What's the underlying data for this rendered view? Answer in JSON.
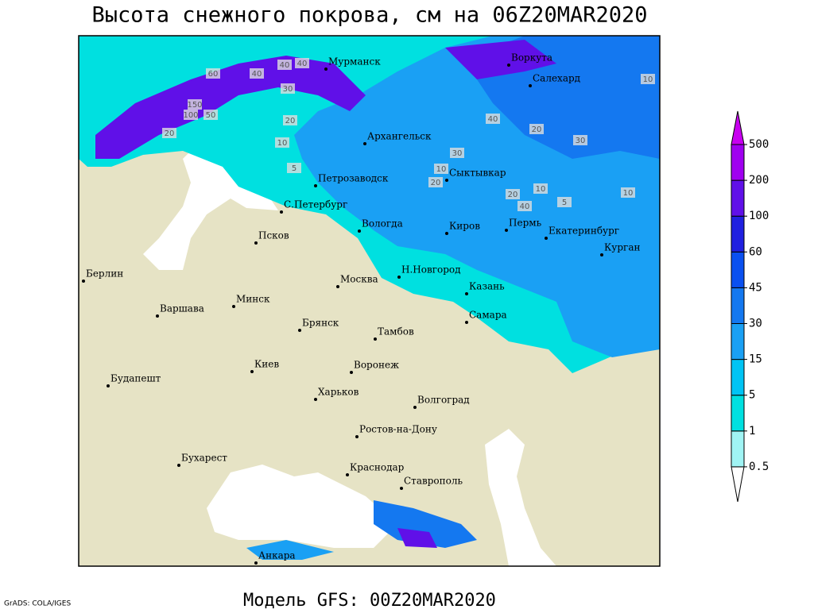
{
  "title": "Высота снежного покрова, см на 06Z20MAR2020",
  "footer": "Модель GFS: 00Z20MAR2020",
  "credit": "GrADS: COLA/IGES",
  "cities": [
    "Мурманск",
    "Воркута",
    "Салехард",
    "Архангельск",
    "Петрозаводск",
    "Сыктывкар",
    "С.Петербург",
    "Вологда",
    "Киров",
    "Пермь",
    "Екатеринбург",
    "Курган",
    "Псков",
    "Берлин",
    "Н.Новгород",
    "Москва",
    "Казань",
    "Минск",
    "Варшава",
    "Самара",
    "Брянск",
    "Тамбов",
    "Киев",
    "Воронеж",
    "Будапешт",
    "Харьков",
    "Волгоград",
    "Ростов-на-Дону",
    "Бухарест",
    "Краснодар",
    "Ставрополь",
    "Анкара"
  ],
  "contour_labels": [
    40,
    40,
    60,
    100,
    50,
    150,
    20,
    30,
    10,
    40,
    20,
    30,
    10,
    5,
    20,
    20,
    10,
    5,
    40,
    30,
    20,
    10,
    40,
    10
  ],
  "legend": {
    "levels": [
      0.5,
      1,
      5,
      15,
      30,
      45,
      60,
      100,
      200,
      500
    ],
    "colors": [
      "#ffffff",
      "#a0f4f4",
      "#00e0e0",
      "#00c4f4",
      "#1aa0f4",
      "#1478f0",
      "#0a50f0",
      "#2020e0",
      "#6010e8",
      "#a000f0",
      "#c800f0"
    ]
  }
}
